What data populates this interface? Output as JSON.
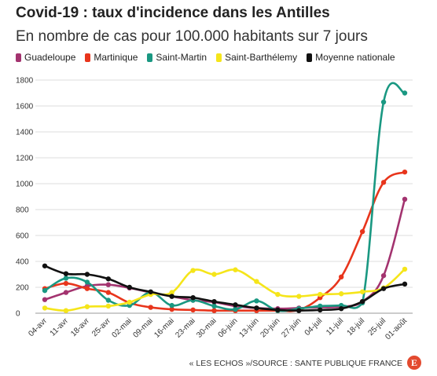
{
  "header": {
    "title": "Covid-19 : taux d'incidence dans les Antilles",
    "subtitle": "En nombre de cas pour 100.000 habitants sur 7 jours"
  },
  "footer": {
    "source": "« LES ECHOS »/SOURCE : SANTE PUBLIQUE FRANCE",
    "logo_letter": "E"
  },
  "chart_data": {
    "type": "line",
    "title": "Covid-19 : taux d'incidence dans les Antilles",
    "subtitle": "En nombre de cas pour 100.000 habitants sur 7 jours",
    "xlabel": "",
    "ylabel": "",
    "ylim": [
      0,
      1800
    ],
    "yticks": [
      0,
      200,
      400,
      600,
      800,
      1000,
      1200,
      1400,
      1600,
      1800
    ],
    "grid": true,
    "legend_position": "top",
    "categories": [
      "04-avr",
      "11-avr",
      "18-avr",
      "25-avr",
      "02-mai",
      "09-mai",
      "16-mai",
      "23-mai",
      "30-mai",
      "06-juin",
      "13-juin",
      "20-juin",
      "27-juin",
      "04-juil",
      "11-juil",
      "18-juil",
      "25-juil",
      "01-août"
    ],
    "series": [
      {
        "name": "Guadeloupe",
        "color": "#a3336f",
        "values": [
          105,
          160,
          210,
          220,
          195,
          160,
          130,
          100,
          85,
          55,
          40,
          35,
          40,
          45,
          50,
          90,
          290,
          880
        ]
      },
      {
        "name": "Martinique",
        "color": "#e8351c",
        "values": [
          190,
          230,
          190,
          160,
          80,
          45,
          30,
          25,
          20,
          20,
          20,
          20,
          25,
          120,
          280,
          630,
          1010,
          1090
        ]
      },
      {
        "name": "Saint-Martin",
        "color": "#1a9882",
        "values": [
          175,
          270,
          240,
          100,
          60,
          160,
          60,
          100,
          55,
          30,
          95,
          20,
          35,
          55,
          60,
          80,
          1630,
          1700
        ]
      },
      {
        "name": "Saint-Barthélemy",
        "color": "#f5e51a",
        "values": [
          40,
          20,
          50,
          55,
          85,
          145,
          160,
          330,
          300,
          335,
          245,
          145,
          130,
          145,
          150,
          165,
          195,
          340
        ]
      },
      {
        "name": "Moyenne nationale",
        "color": "#111111",
        "values": [
          365,
          305,
          300,
          265,
          200,
          165,
          130,
          120,
          90,
          65,
          40,
          25,
          20,
          25,
          35,
          90,
          190,
          225
        ]
      }
    ]
  }
}
